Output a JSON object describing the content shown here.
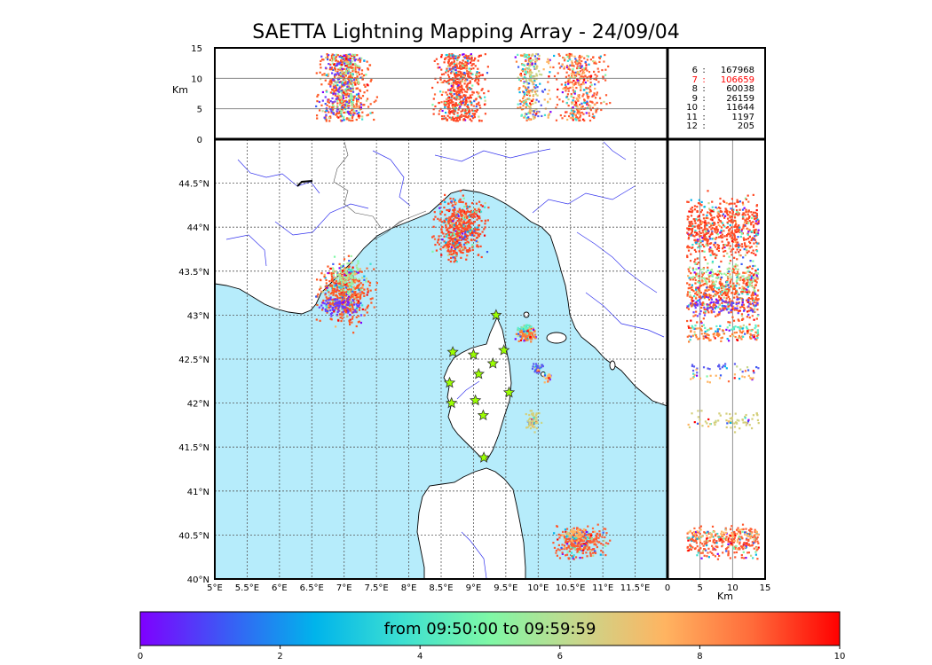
{
  "title": "SAETTA Lightning Mapping Array - 24/09/04",
  "colorbar": {
    "label": "from 09:50:00 to 09:59:59",
    "ticks": [
      "0",
      "2",
      "4",
      "6",
      "8",
      "10"
    ],
    "colors": [
      "#7f00ff",
      "#3a5cf5",
      "#00b4eb",
      "#3de0d1",
      "#7ff8a6",
      "#c7d78c",
      "#ffb461",
      "#ff6b3a",
      "#ff0000"
    ]
  },
  "stats": [
    {
      "key": "6",
      "value": "167968"
    },
    {
      "key": "7",
      "value": "106659",
      "highlight": true
    },
    {
      "key": "8",
      "value": "60038"
    },
    {
      "key": "9",
      "value": "26159"
    },
    {
      "key": "10",
      "value": "11644"
    },
    {
      "key": "11",
      "value": "1197"
    },
    {
      "key": "12",
      "value": "205"
    }
  ],
  "colors": {
    "sea": "#b6ecfb",
    "highlight": "#ff0000",
    "station": "#9aff00"
  },
  "chart_data": {
    "type": "scatter",
    "map": {
      "xlim": [
        5,
        12
      ],
      "ylim": [
        40,
        45
      ],
      "x_ticks": [
        "5°E",
        "5.5°E",
        "6°E",
        "6.5°E",
        "7°E",
        "7.5°E",
        "8°E",
        "8.5°E",
        "9°E",
        "9.5°E",
        "10°E",
        "10.5°E",
        "11°E",
        "11.5°E"
      ],
      "y_ticks": [
        "40°N",
        "40.5°N",
        "41°N",
        "41.5°N",
        "42°N",
        "42.5°N",
        "43°N",
        "43.5°N",
        "44°N",
        "44.5°N"
      ],
      "grid": true
    },
    "altitude_panel": {
      "ylabel": "Km",
      "yticks": [
        "0",
        "5",
        "10",
        "15"
      ],
      "ylim": [
        0,
        15
      ]
    },
    "side_panel": {
      "xlabel": "Km",
      "xticks": [
        "0",
        "5",
        "10",
        "15"
      ],
      "xlim": [
        0,
        15
      ]
    },
    "clusters": [
      {
        "lon": 7.0,
        "lat": 43.25,
        "rx": 0.35,
        "ry": 0.3,
        "color": "#ff5722",
        "n": 520
      },
      {
        "lon": 7.05,
        "lat": 43.45,
        "rx": 0.2,
        "ry": 0.15,
        "color": "#9ef0a0",
        "n": 120
      },
      {
        "lon": 6.95,
        "lat": 43.1,
        "rx": 0.25,
        "ry": 0.1,
        "color": "#6a3bff",
        "n": 90
      },
      {
        "lon": 8.8,
        "lat": 44.0,
        "rx": 0.32,
        "ry": 0.28,
        "color": "#ff4a25",
        "n": 560
      },
      {
        "lon": 8.72,
        "lat": 43.75,
        "rx": 0.1,
        "ry": 0.14,
        "color": "#ff4a25",
        "n": 60
      },
      {
        "lon": 9.82,
        "lat": 42.78,
        "rx": 0.12,
        "ry": 0.08,
        "color": "#ff7f33",
        "n": 110
      },
      {
        "lon": 9.8,
        "lat": 42.85,
        "rx": 0.1,
        "ry": 0.04,
        "color": "#5ff0c8",
        "n": 40
      },
      {
        "lon": 10.0,
        "lat": 42.4,
        "rx": 0.08,
        "ry": 0.05,
        "color": "#5a5af0",
        "n": 30
      },
      {
        "lon": 10.15,
        "lat": 42.3,
        "rx": 0.05,
        "ry": 0.06,
        "color": "#ffb461",
        "n": 25
      },
      {
        "lon": 9.92,
        "lat": 41.8,
        "rx": 0.1,
        "ry": 0.1,
        "color": "#d4cf7a",
        "n": 70
      },
      {
        "lon": 10.65,
        "lat": 40.42,
        "rx": 0.32,
        "ry": 0.15,
        "color": "#ff5a30",
        "n": 320
      },
      {
        "lon": 10.55,
        "lat": 40.5,
        "rx": 0.15,
        "ry": 0.06,
        "color": "#ffb461",
        "n": 60
      }
    ],
    "stations": [
      {
        "lon": 9.35,
        "lat": 43.0
      },
      {
        "lon": 8.68,
        "lat": 42.58
      },
      {
        "lon": 9.0,
        "lat": 42.55
      },
      {
        "lon": 9.47,
        "lat": 42.6
      },
      {
        "lon": 9.3,
        "lat": 42.45
      },
      {
        "lon": 9.08,
        "lat": 42.33
      },
      {
        "lon": 8.63,
        "lat": 42.23
      },
      {
        "lon": 9.55,
        "lat": 42.12
      },
      {
        "lon": 8.66,
        "lat": 42.0
      },
      {
        "lon": 9.03,
        "lat": 42.03
      },
      {
        "lon": 9.15,
        "lat": 41.86
      },
      {
        "lon": 9.16,
        "lat": 41.38
      }
    ]
  }
}
